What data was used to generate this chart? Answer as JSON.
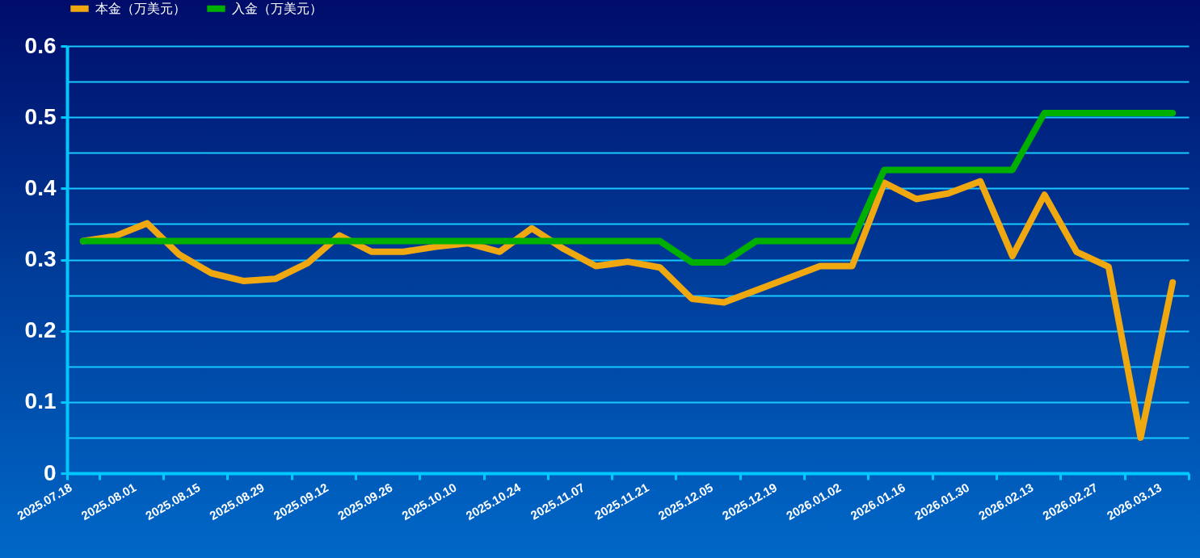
{
  "chart_data": {
    "type": "line",
    "categories": [
      "2025.07.18",
      null,
      "2025.08.01",
      null,
      "2025.08.15",
      null,
      "2025.08.29",
      null,
      "2025.09.12",
      null,
      "2025.09.26",
      null,
      "2025.10.10",
      null,
      "2025.10.24",
      null,
      "2025.11.07",
      null,
      "2025.11.21",
      null,
      "2025.12.05",
      null,
      "2025.12.19",
      null,
      "2026.01.02",
      null,
      "2026.01.16",
      null,
      "2026.01.30",
      null,
      "2026.02.13",
      null,
      "2026.02.27",
      null,
      "2026.03.13"
    ],
    "series": [
      {
        "name": "本金（万美元）",
        "color": "#f0a810",
        "values": [
          0.326,
          0.333,
          0.351,
          0.307,
          0.281,
          0.27,
          0.273,
          0.295,
          0.334,
          0.311,
          0.311,
          0.318,
          0.323,
          0.311,
          0.344,
          0.315,
          0.291,
          0.297,
          0.289,
          0.245,
          0.24,
          0.257,
          0.274,
          0.291,
          0.291,
          0.408,
          0.385,
          0.393,
          0.41,
          0.305,
          0.391,
          0.311,
          0.29,
          0.05,
          0.268
        ]
      },
      {
        "name": "入金（万美元）",
        "color": "#00b000",
        "values": [
          0.326,
          0.326,
          0.326,
          0.326,
          0.326,
          0.326,
          0.326,
          0.326,
          0.326,
          0.326,
          0.326,
          0.326,
          0.326,
          0.326,
          0.326,
          0.326,
          0.326,
          0.326,
          0.326,
          0.296,
          0.296,
          0.326,
          0.326,
          0.326,
          0.326,
          0.426,
          0.426,
          0.426,
          0.426,
          0.426,
          0.506,
          0.506,
          0.506,
          0.506,
          0.506
        ]
      }
    ],
    "ylim": [
      0,
      0.6
    ],
    "yticks": [
      0,
      {
        "value": 0.05,
        "label": null
      },
      0.1,
      {
        "value": 0.15,
        "label": null
      },
      0.2,
      {
        "value": 0.25,
        "label": null
      },
      0.3,
      {
        "value": 0.35,
        "label": null
      },
      0.4,
      {
        "value": 0.45,
        "label": null
      },
      0.5,
      {
        "value": 0.55,
        "label": null
      },
      0.6
    ],
    "grid": true,
    "legend": "top",
    "line_style": "solid"
  }
}
